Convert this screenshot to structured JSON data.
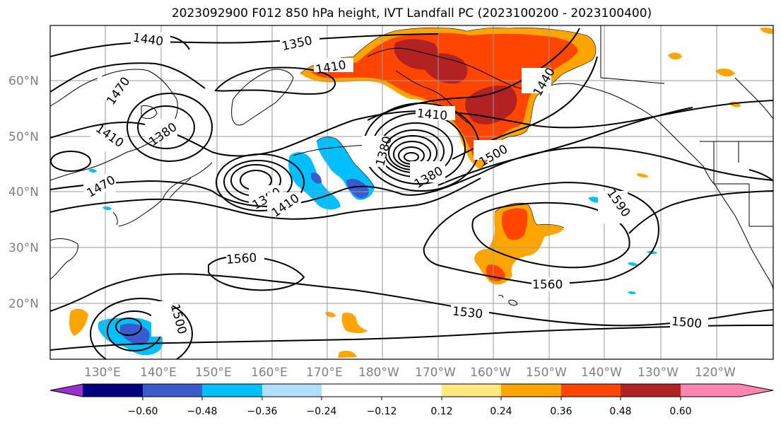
{
  "title": "2023092900 F012 850 hPa height, IVT Landfall PC (2023100200 - 2023100400)",
  "map": {
    "lat_labels": [
      "60°N",
      "50°N",
      "40°N",
      "30°N",
      "20°N"
    ],
    "lon_labels": [
      "130°E",
      "140°E",
      "150°E",
      "160°E",
      "170°E",
      "180°W",
      "170°W",
      "160°W",
      "150°W",
      "140°W",
      "130°W",
      "120°W"
    ],
    "contour_labels": [
      "1440",
      "1350",
      "1410",
      "1470",
      "1380",
      "1410",
      "1470",
      "1380",
      "1410",
      "1410",
      "1380",
      "1500",
      "1440",
      "1380",
      "1590",
      "1560",
      "1560",
      "1530",
      "1500",
      "1500"
    ]
  },
  "colorbar": {
    "tick_labels": [
      "−0.60",
      "−0.48",
      "−0.36",
      "−0.24",
      "−0.12",
      "0.12",
      "0.24",
      "0.36",
      "0.48",
      "0.60"
    ],
    "colors": {
      "under": "#9932cc",
      "b1": "#000080",
      "b2": "#3a5ad0",
      "b3": "#00bfff",
      "b4": "#b0e0ff",
      "b5": "#ffffff",
      "b6": "#ffe87c",
      "b7": "#ffa500",
      "b8": "#ff4500",
      "b9": "#b22222",
      "over": "#ff85b0"
    }
  }
}
